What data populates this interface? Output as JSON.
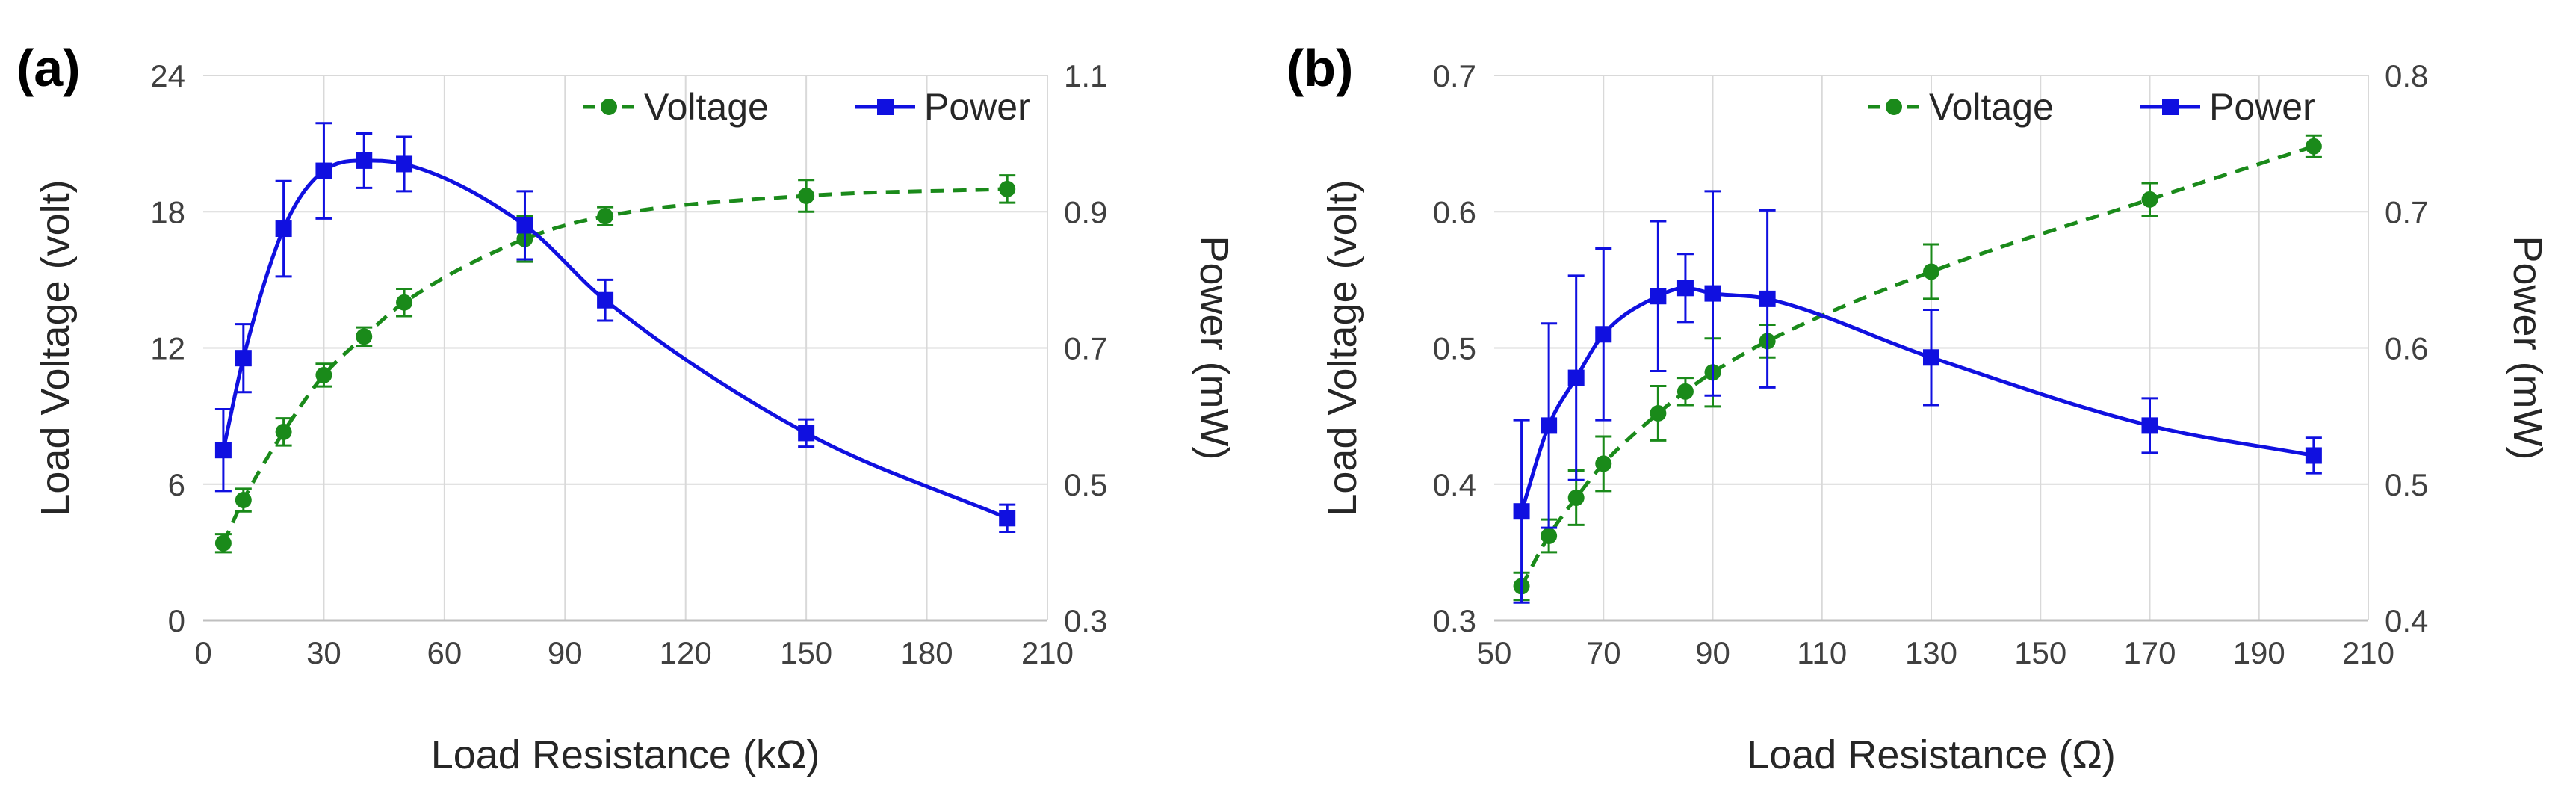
{
  "colors": {
    "voltage": "#1a8a1a",
    "power": "#1010e0",
    "grid": "#d9d9d9",
    "axis": "#bfbfbf"
  },
  "chart_data": [
    {
      "type": "line",
      "panel_label": "(a)",
      "xlabel": "Load Resistance (kΩ)",
      "ylabel": "Load Voltage (volt)",
      "y2label": "Power (mW)",
      "xlim": [
        0,
        210
      ],
      "ylim": [
        0,
        24
      ],
      "y2lim": [
        0.3,
        1.1
      ],
      "xticks": [
        "0",
        "30",
        "60",
        "90",
        "120",
        "150",
        "180",
        "210"
      ],
      "yticks": [
        "0",
        "6",
        "12",
        "18",
        "24"
      ],
      "y2ticks": [
        "0.3",
        "0.5",
        "0.7",
        "0.9",
        "1.1"
      ],
      "grid": true,
      "legend_position": "top-right",
      "series": [
        {
          "name": "Voltage",
          "axis": "left",
          "style": "dashed",
          "marker": "circle",
          "x": [
            5,
            10,
            20,
            30,
            40,
            50,
            80,
            100,
            150,
            200
          ],
          "y": [
            3.4,
            5.3,
            8.3,
            10.8,
            12.5,
            14.0,
            16.8,
            17.8,
            18.7,
            19.0
          ],
          "err": [
            0.4,
            0.5,
            0.6,
            0.5,
            0.4,
            0.6,
            1.0,
            0.4,
            0.7,
            0.6
          ]
        },
        {
          "name": "Power",
          "axis": "right",
          "style": "solid",
          "marker": "square",
          "x": [
            5,
            10,
            20,
            30,
            40,
            50,
            80,
            100,
            150,
            200
          ],
          "y": [
            0.55,
            0.685,
            0.875,
            0.96,
            0.975,
            0.97,
            0.88,
            0.77,
            0.575,
            0.45
          ],
          "err": [
            0.06,
            0.05,
            0.07,
            0.07,
            0.04,
            0.04,
            0.05,
            0.03,
            0.02,
            0.02
          ]
        }
      ]
    },
    {
      "type": "line",
      "panel_label": "(b)",
      "xlabel": "Load Resistance (Ω)",
      "ylabel": "Load Voltage (volt)",
      "y2label": "Power (mW)",
      "xlim": [
        50,
        210
      ],
      "ylim": [
        0.3,
        0.7
      ],
      "y2lim": [
        0.4,
        0.8
      ],
      "xticks": [
        "50",
        "70",
        "90",
        "110",
        "130",
        "150",
        "170",
        "190",
        "210"
      ],
      "yticks": [
        "0.3",
        "0.4",
        "0.5",
        "0.6",
        "0.7"
      ],
      "y2ticks": [
        "0.4",
        "0.5",
        "0.6",
        "0.7",
        "0.8"
      ],
      "grid": true,
      "legend_position": "top-right",
      "series": [
        {
          "name": "Voltage",
          "axis": "left",
          "style": "dashed",
          "marker": "circle",
          "x": [
            55,
            60,
            65,
            70,
            80,
            85,
            90,
            100,
            130,
            170,
            200
          ],
          "y": [
            0.325,
            0.362,
            0.39,
            0.415,
            0.452,
            0.468,
            0.482,
            0.505,
            0.556,
            0.609,
            0.648
          ],
          "err": [
            0.01,
            0.012,
            0.02,
            0.02,
            0.02,
            0.01,
            0.025,
            0.012,
            0.02,
            0.012,
            0.008
          ]
        },
        {
          "name": "Power",
          "axis": "right",
          "style": "solid",
          "marker": "square",
          "x": [
            55,
            60,
            65,
            70,
            80,
            85,
            90,
            100,
            130,
            170,
            200
          ],
          "y": [
            0.48,
            0.543,
            0.578,
            0.61,
            0.638,
            0.644,
            0.64,
            0.636,
            0.593,
            0.543,
            0.521
          ],
          "err": [
            0.067,
            0.075,
            0.075,
            0.063,
            0.055,
            0.025,
            0.075,
            0.065,
            0.035,
            0.02,
            0.013
          ]
        }
      ]
    }
  ]
}
